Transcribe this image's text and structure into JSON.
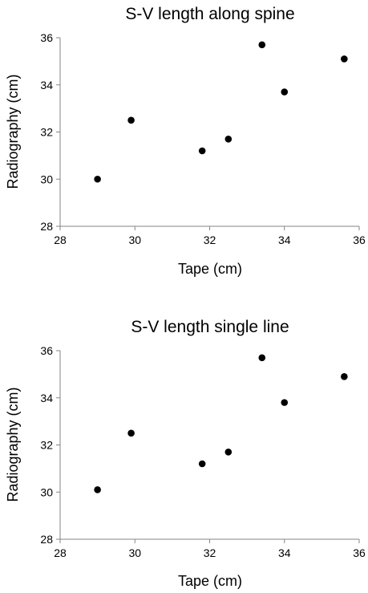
{
  "chart_data": [
    {
      "type": "scatter",
      "title": "S-V length along spine",
      "xlabel": "Tape (cm)",
      "ylabel": "Radiography (cm)",
      "xlim": [
        28,
        36
      ],
      "ylim": [
        28,
        36
      ],
      "x_ticks": [
        28,
        30,
        32,
        34,
        36
      ],
      "y_ticks": [
        28,
        30,
        32,
        34,
        36
      ],
      "grid": false,
      "legend": "none",
      "marker_color": "#000000",
      "axis_color": "#868686",
      "series": [
        {
          "x": [
            29.0,
            29.9,
            31.8,
            32.5,
            33.4,
            34.0,
            35.6
          ],
          "y": [
            30.0,
            32.5,
            31.2,
            31.7,
            35.7,
            33.7,
            35.1
          ]
        }
      ]
    },
    {
      "type": "scatter",
      "title": "S-V length single line",
      "xlabel": "Tape (cm)",
      "ylabel": "Radiography (cm)",
      "xlim": [
        28,
        36
      ],
      "ylim": [
        28,
        36
      ],
      "x_ticks": [
        28,
        30,
        32,
        34,
        36
      ],
      "y_ticks": [
        28,
        30,
        32,
        34,
        36
      ],
      "grid": false,
      "legend": "none",
      "marker_color": "#000000",
      "axis_color": "#868686",
      "series": [
        {
          "x": [
            29.0,
            29.9,
            31.8,
            32.5,
            33.4,
            34.0,
            35.6
          ],
          "y": [
            30.1,
            32.5,
            31.2,
            31.7,
            35.7,
            33.8,
            34.9
          ]
        }
      ]
    }
  ]
}
